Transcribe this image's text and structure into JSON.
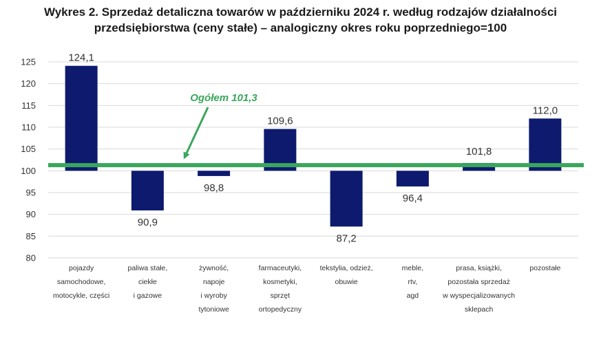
{
  "title_line1": "Wykres 2. Sprzedaż detaliczna towarów w październiku 2024 r. według rodzajów działalności",
  "title_line2": "przedsiębiorstwa (ceny stałe) – analogiczny okres roku poprzedniego=100",
  "colors": {
    "bar": "#0d1a6e",
    "reference": "#3aa65c",
    "grid": "#d9d9d9",
    "text": "#333333"
  },
  "chart_data": {
    "type": "bar",
    "title": "Wykres 2. Sprzedaż detaliczna towarów w październiku 2024 r. według rodzajów działalności przedsiębiorstwa (ceny stałe) – analogiczny okres roku poprzedniego=100",
    "baseline": 100,
    "ylim": [
      80,
      125
    ],
    "yticks": [
      "125",
      "120",
      "115",
      "110",
      "105",
      "100",
      "95",
      "90",
      "85",
      "80"
    ],
    "grid": true,
    "categories": [
      [
        "pojazdy",
        "samochodowe,",
        "motocykle,  części"
      ],
      [
        "paliwa stałe,",
        "ciekłe",
        "i gazowe"
      ],
      [
        "żywność,",
        "napoje",
        "i wyroby",
        "tytoniowe"
      ],
      [
        "farmaceutyki,",
        "kosmetyki,",
        "sprzęt",
        "ortopedyczny"
      ],
      [
        "tekstylia, odzież,",
        "obuwie"
      ],
      [
        "meble,",
        "rtv,",
        "agd"
      ],
      [
        "prasa, książki,",
        "pozostała sprzedaż",
        "w wyspecjalizowanych",
        "sklepach"
      ],
      [
        "pozostałe"
      ]
    ],
    "values": [
      124.1,
      90.9,
      98.8,
      109.6,
      87.2,
      96.4,
      101.8,
      112.0
    ],
    "data_labels": [
      "124,1",
      "90,9",
      "98,8",
      "109,6",
      "87,2",
      "96,4",
      "101,8",
      "112,0"
    ],
    "reference": {
      "value": 101.3,
      "label": "Ogółem 101,3"
    }
  }
}
